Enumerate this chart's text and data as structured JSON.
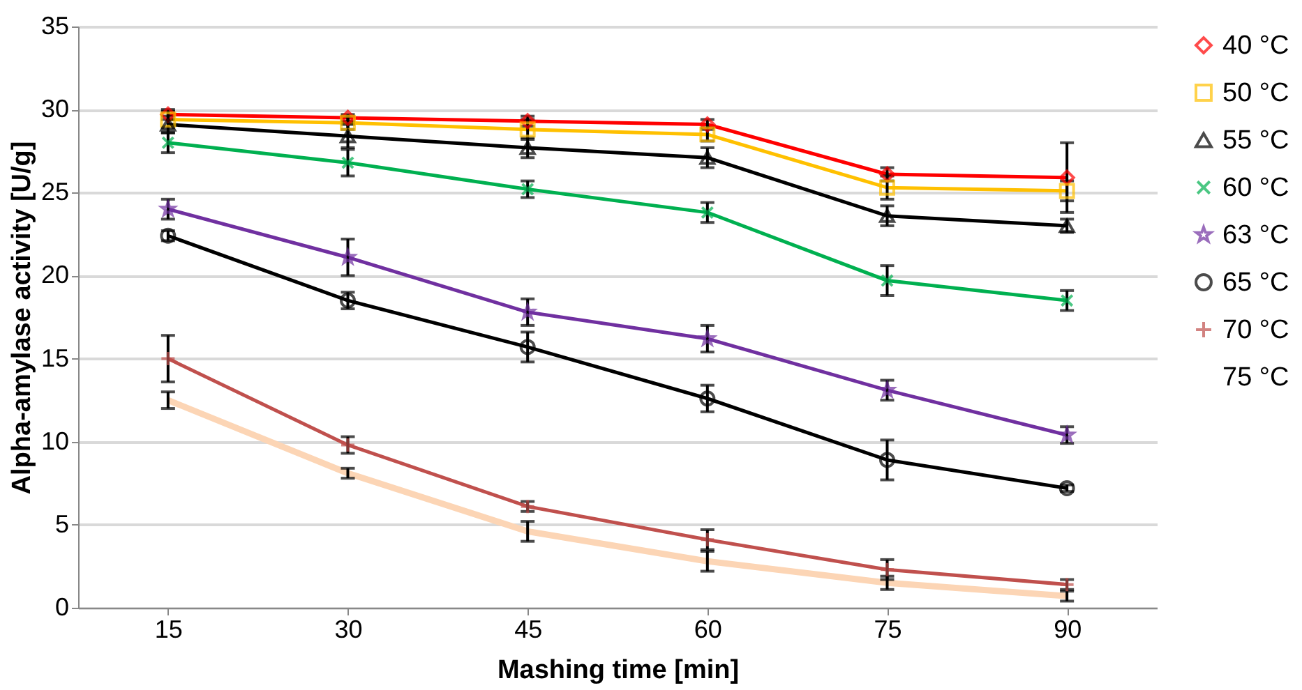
{
  "chart_data": {
    "type": "line",
    "xlabel": "Mashing time [min]",
    "ylabel": "Alpha-amylase activity [U/g]",
    "categories": [
      "15",
      "30",
      "45",
      "60",
      "75",
      "90"
    ],
    "ylim": [
      0,
      35
    ],
    "yticks": [
      0,
      5,
      10,
      15,
      20,
      25,
      30,
      35
    ],
    "grid": "y",
    "legend": "right",
    "series": [
      {
        "name": "40 °C",
        "color": "#ff0000",
        "marker": "diamond",
        "values": [
          29.7,
          29.5,
          29.3,
          29.1,
          26.1,
          25.9
        ],
        "errors": [
          0.3,
          0.2,
          0.3,
          0.3,
          0.4,
          2.1
        ]
      },
      {
        "name": "50 °C",
        "color": "#ffc000",
        "marker": "square",
        "values": [
          29.4,
          29.2,
          28.8,
          28.5,
          25.3,
          25.1
        ],
        "errors": [
          0.5,
          0.4,
          0.6,
          0.4,
          0.7,
          0.6
        ]
      },
      {
        "name": "55 °C",
        "color": "#000000",
        "marker": "triangle",
        "values": [
          29.1,
          28.4,
          27.7,
          27.1,
          23.6,
          23.0
        ],
        "errors": [
          0.5,
          0.7,
          0.6,
          0.6,
          0.6,
          0.4
        ]
      },
      {
        "name": "60 °C",
        "color": "#00b050",
        "marker": "x",
        "values": [
          28.0,
          26.8,
          25.2,
          23.8,
          19.7,
          18.5
        ],
        "errors": [
          0.6,
          0.8,
          0.5,
          0.6,
          0.9,
          0.6
        ]
      },
      {
        "name": "63 °C",
        "color": "#7030a0",
        "marker": "star",
        "values": [
          24.0,
          21.1,
          17.8,
          16.2,
          13.1,
          10.4
        ],
        "errors": [
          0.6,
          1.1,
          0.8,
          0.8,
          0.6,
          0.5
        ]
      },
      {
        "name": "65 °C",
        "color": "#000000",
        "marker": "circle",
        "values": [
          22.4,
          18.5,
          15.7,
          12.6,
          8.9,
          7.2
        ],
        "errors": [
          0.3,
          0.5,
          0.9,
          0.8,
          1.2,
          0.2
        ]
      },
      {
        "name": "70 °C",
        "color": "#c0504d",
        "marker": "cross",
        "values": [
          15.0,
          9.8,
          6.1,
          4.1,
          2.3,
          1.4
        ],
        "errors": [
          1.4,
          0.5,
          0.3,
          0.6,
          0.6,
          0.3
        ]
      },
      {
        "name": "75 °C",
        "color": "#fcd5b5",
        "marker": "none",
        "values": [
          12.5,
          8.1,
          4.6,
          2.8,
          1.5,
          0.7
        ],
        "errors": [
          0.5,
          0.3,
          0.6,
          0.6,
          0.4,
          0.3
        ]
      }
    ]
  }
}
